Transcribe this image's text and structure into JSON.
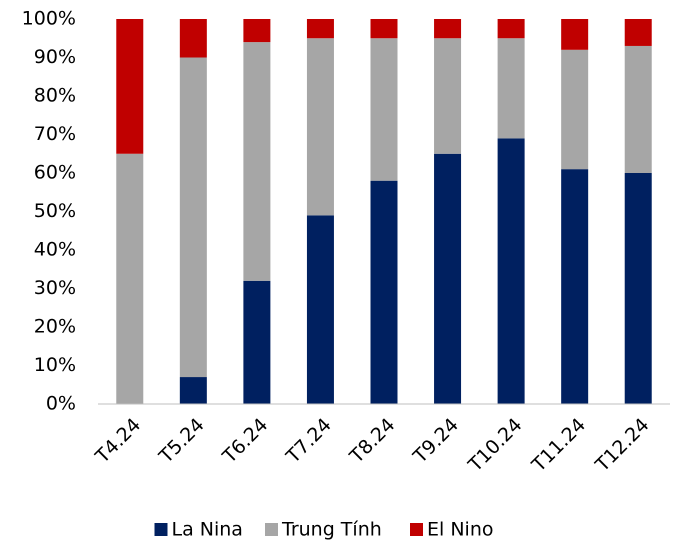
{
  "chart_data": {
    "type": "stacked_bar",
    "categories": [
      "T4.24",
      "T5.24",
      "T6.24",
      "T7.24",
      "T8.24",
      "T9.24",
      "T10.24",
      "T11.24",
      "T12.24"
    ],
    "series": [
      {
        "name": "La Nina",
        "color": "#002060",
        "values": [
          0,
          7,
          32,
          49,
          58,
          65,
          69,
          61,
          60
        ]
      },
      {
        "name": "Trung Tính",
        "color": "#a6a6a6",
        "values": [
          65,
          83,
          62,
          46,
          37,
          30,
          26,
          31,
          33
        ]
      },
      {
        "name": "El Nino",
        "color": "#c00000",
        "values": [
          35,
          10,
          6,
          5,
          5,
          5,
          5,
          8,
          7
        ]
      }
    ],
    "ylim": [
      0,
      100
    ],
    "yticks": [
      {
        "value": 0,
        "label": "0%"
      },
      {
        "value": 10,
        "label": "10%"
      },
      {
        "value": 20,
        "label": "20%"
      },
      {
        "value": 30,
        "label": "30%"
      },
      {
        "value": 40,
        "label": "40%"
      },
      {
        "value": 50,
        "label": "50%"
      },
      {
        "value": 60,
        "label": "60%"
      },
      {
        "value": 70,
        "label": "70%"
      },
      {
        "value": 80,
        "label": "80%"
      },
      {
        "value": 90,
        "label": "90%"
      },
      {
        "value": 100,
        "label": "100%"
      }
    ],
    "grid": false,
    "legend": "bottom"
  }
}
